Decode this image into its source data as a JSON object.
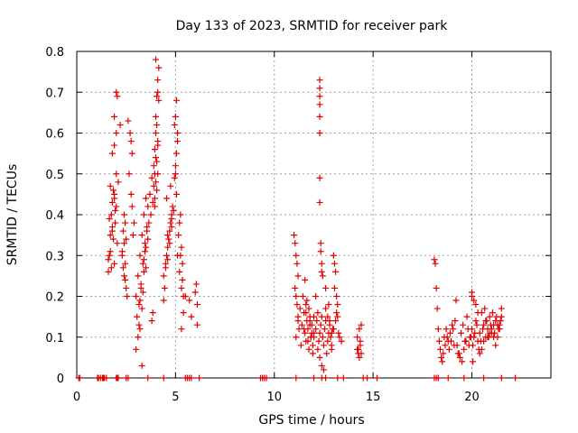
{
  "chart_data": {
    "type": "scatter",
    "title": "Day 133 of 2023, SRMTID for receiver park",
    "xlabel": "GPS time / hours",
    "ylabel": "SRMTID / TECUs",
    "xlim": [
      0,
      24
    ],
    "ylim": [
      0,
      0.8
    ],
    "xticks": [
      0,
      5,
      10,
      15,
      20
    ],
    "xtick_labels": [
      "0",
      "5",
      "10",
      "15",
      "20"
    ],
    "yticks": [
      0,
      0.1,
      0.2,
      0.3,
      0.4,
      0.5,
      0.6,
      0.7,
      0.8
    ],
    "ytick_labels": [
      "0",
      "0.1",
      "0.2",
      "0.3",
      "0.4",
      "0.5",
      "0.6",
      "0.7",
      "0.8"
    ],
    "grid": true,
    "marker": "+",
    "color": "#e00000",
    "series": [
      {
        "name": "SRMTID",
        "x": [
          0.1,
          0.15,
          1.05,
          1.1,
          1.2,
          1.3,
          1.35,
          1.4,
          1.5,
          2.0,
          2.05,
          2.1,
          2.5,
          2.6,
          3.6,
          4.4,
          5.5,
          5.6,
          5.7,
          5.8,
          6.2,
          9.3,
          9.4,
          9.5,
          9.6,
          11.1,
          12.0,
          12.4,
          12.6,
          13.2,
          13.5,
          14.5,
          14.7,
          15.2,
          18.1,
          18.2,
          18.3,
          18.8,
          19.6,
          20.6,
          21.5,
          22.2,
          1.6,
          1.65,
          1.7,
          1.75,
          1.8,
          1.85,
          1.9,
          1.95,
          2.0,
          2.05,
          1.6,
          1.7,
          1.8,
          1.9,
          1.65,
          1.75,
          1.85,
          1.95,
          1.7,
          1.8,
          1.9,
          2.0,
          1.8,
          1.9,
          2.0,
          2.05,
          1.9,
          2.0,
          2.1,
          2.2,
          2.3,
          2.4,
          2.35,
          2.45,
          2.4,
          2.5,
          2.55,
          2.5,
          2.4,
          2.45,
          2.35,
          2.3,
          2.45,
          2.6,
          2.7,
          2.75,
          2.8,
          2.65,
          2.75,
          2.8,
          2.9,
          2.85,
          3.0,
          3.1,
          3.2,
          3.3,
          3.4,
          3.5,
          3.05,
          3.15,
          3.25,
          3.35,
          3.45,
          3.55,
          3.1,
          3.2,
          3.3,
          3.4,
          3.5,
          3.6,
          3.0,
          3.2,
          3.4,
          3.6,
          3.15,
          3.35,
          3.55,
          3.25,
          3.45,
          3.3,
          3.5,
          3.7,
          3.8,
          3.75,
          3.85,
          3.65,
          3.9,
          3.95,
          3.8,
          3.85,
          3.9,
          3.95,
          4.0,
          4.05,
          4.1,
          4.0,
          4.05,
          4.1,
          4.15,
          3.95,
          4.0,
          4.1,
          4.05,
          4.0,
          4.1,
          3.95,
          4.0,
          4.05,
          4.1,
          4.15,
          4.4,
          4.5,
          4.6,
          4.7,
          4.8,
          4.45,
          4.55,
          4.65,
          4.75,
          4.85,
          4.5,
          4.6,
          4.7,
          4.8,
          4.9,
          4.4,
          4.6,
          4.8,
          4.55,
          4.75,
          4.95,
          5.0,
          5.05,
          5.1,
          4.95,
          5.0,
          5.05,
          5.1,
          5.0,
          5.05,
          5.1,
          5.15,
          5.2,
          5.25,
          5.3,
          5.35,
          5.2,
          5.3,
          5.25,
          5.35,
          5.4,
          5.3,
          5.4,
          5.5,
          5.7,
          5.8,
          6.0,
          6.1,
          6.1,
          6.05,
          11.0,
          11.05,
          11.1,
          11.15,
          11.2,
          11.05,
          11.1,
          11.15,
          11.2,
          11.25,
          11.1,
          11.2,
          11.3,
          11.35,
          11.4,
          11.5,
          11.55,
          11.6,
          11.65,
          11.7,
          11.75,
          11.8,
          11.85,
          11.9,
          11.95,
          12.0,
          11.45,
          11.55,
          11.65,
          11.75,
          11.85,
          11.95,
          11.5,
          11.6,
          11.7,
          11.8,
          11.9,
          12.0,
          11.6,
          11.8,
          12.0,
          12.1,
          12.15,
          12.2,
          12.25,
          12.3,
          12.1,
          12.2,
          12.3,
          12.35,
          12.4,
          12.45,
          12.5,
          12.55,
          12.6,
          12.65,
          12.7,
          12.75,
          12.8,
          12.85,
          12.9,
          12.95,
          12.4,
          12.5,
          12.6,
          12.7,
          12.8,
          12.9,
          12.45,
          12.6,
          12.75,
          12.9,
          12.3,
          12.3,
          12.3,
          12.3,
          12.3,
          12.3,
          12.3,
          12.3,
          12.35,
          12.35,
          12.4,
          12.4,
          13.0,
          13.05,
          13.1,
          13.15,
          13.2,
          13.0,
          13.1,
          13.2,
          13.3,
          13.4,
          13.05,
          13.15,
          13.25,
          14.2,
          14.25,
          14.3,
          14.35,
          14.4,
          14.2,
          14.3,
          14.4,
          14.25,
          14.35,
          18.1,
          18.15,
          18.2,
          18.25,
          18.3,
          18.35,
          18.4,
          18.45,
          18.5,
          18.6,
          18.7,
          18.8,
          18.9,
          19.0,
          19.1,
          18.55,
          18.65,
          18.75,
          18.85,
          18.95,
          19.05,
          19.15,
          19.2,
          19.3,
          19.4,
          19.5,
          19.6,
          19.7,
          19.8,
          19.9,
          19.25,
          19.35,
          19.45,
          19.55,
          19.65,
          19.75,
          19.85,
          19.95,
          20.0,
          20.1,
          20.2,
          20.3,
          20.4,
          20.5,
          20.6,
          20.7,
          20.8,
          20.9,
          21.0,
          21.1,
          21.2,
          21.3,
          21.4,
          21.5,
          20.05,
          20.15,
          20.25,
          20.35,
          20.45,
          20.55,
          20.65,
          20.75,
          20.85,
          20.95,
          21.05,
          21.15,
          21.25,
          21.35,
          21.45,
          20.0,
          20.2,
          20.4,
          20.6,
          20.8,
          21.0,
          21.2,
          21.4,
          20.1,
          20.3,
          20.5,
          20.7,
          20.9,
          21.1,
          21.3,
          21.5,
          20.0,
          20.05
        ],
        "y": [
          0,
          0,
          0,
          0,
          0,
          0,
          0,
          0,
          0,
          0,
          0,
          0,
          0,
          0,
          0,
          0,
          0,
          0,
          0,
          0,
          0,
          0,
          0,
          0,
          0,
          0,
          0,
          0,
          0,
          0,
          0,
          0,
          0,
          0,
          0,
          0,
          0,
          0,
          0,
          0,
          0,
          0,
          0.26,
          0.3,
          0.35,
          0.4,
          0.43,
          0.46,
          0.28,
          0.38,
          0.42,
          0.33,
          0.29,
          0.31,
          0.37,
          0.44,
          0.39,
          0.27,
          0.34,
          0.41,
          0.47,
          0.36,
          0.45,
          0.5,
          0.55,
          0.64,
          0.7,
          0.69,
          0.57,
          0.6,
          0.48,
          0.62,
          0.3,
          0.33,
          0.36,
          0.28,
          0.25,
          0.22,
          0.2,
          0.34,
          0.4,
          0.38,
          0.27,
          0.31,
          0.24,
          0.63,
          0.6,
          0.58,
          0.55,
          0.5,
          0.45,
          0.42,
          0.38,
          0.35,
          0.2,
          0.25,
          0.3,
          0.35,
          0.4,
          0.44,
          0.15,
          0.18,
          0.22,
          0.28,
          0.33,
          0.37,
          0.1,
          0.12,
          0.17,
          0.26,
          0.32,
          0.42,
          0.07,
          0.19,
          0.29,
          0.34,
          0.13,
          0.21,
          0.36,
          0.23,
          0.31,
          0.03,
          0.27,
          0.45,
          0.49,
          0.4,
          0.43,
          0.38,
          0.47,
          0.5,
          0.14,
          0.16,
          0.52,
          0.56,
          0.6,
          0.53,
          0.58,
          0.64,
          0.69,
          0.7,
          0.76,
          0.44,
          0.48,
          0.5,
          0.46,
          0.78,
          0.57,
          0.42,
          0.54,
          0.62,
          0.73,
          0.68,
          0.25,
          0.28,
          0.32,
          0.36,
          0.4,
          0.22,
          0.3,
          0.34,
          0.38,
          0.42,
          0.27,
          0.29,
          0.33,
          0.37,
          0.41,
          0.19,
          0.35,
          0.39,
          0.44,
          0.47,
          0.49,
          0.52,
          0.55,
          0.58,
          0.62,
          0.64,
          0.68,
          0.6,
          0.5,
          0.45,
          0.3,
          0.35,
          0.38,
          0.4,
          0.32,
          0.28,
          0.26,
          0.22,
          0.3,
          0.24,
          0.2,
          0.12,
          0.16,
          0.2,
          0.19,
          0.15,
          0.21,
          0.18,
          0.13,
          0.23,
          0.35,
          0.33,
          0.3,
          0.28,
          0.25,
          0.22,
          0.2,
          0.18,
          0.15,
          0.12,
          0.1,
          0.14,
          0.17,
          0.08,
          0.13,
          0.16,
          0.11,
          0.09,
          0.19,
          0.12,
          0.07,
          0.15,
          0.1,
          0.13,
          0.06,
          0.11,
          0.2,
          0.24,
          0.14,
          0.17,
          0.1,
          0.08,
          0.12,
          0.16,
          0.09,
          0.14,
          0.11,
          0.15,
          0.18,
          0.13,
          0.1,
          0.12,
          0.14,
          0.16,
          0.09,
          0.11,
          0.2,
          0.07,
          0.05,
          0.13,
          0.15,
          0.1,
          0.08,
          0.12,
          0.14,
          0.06,
          0.09,
          0.11,
          0.13,
          0.1,
          0.08,
          0.12,
          0.03,
          0.02,
          0.17,
          0.15,
          0.14,
          0.11,
          0.25,
          0.22,
          0.18,
          0.07,
          0.43,
          0.49,
          0.6,
          0.64,
          0.67,
          0.71,
          0.73,
          0.69,
          0.31,
          0.33,
          0.28,
          0.26,
          0.3,
          0.28,
          0.26,
          0.2,
          0.18,
          0.12,
          0.14,
          0.15,
          0.1,
          0.09,
          0.22,
          0.16,
          0.11,
          0.07,
          0.06,
          0.05,
          0.08,
          0.13,
          0.1,
          0.12,
          0.06,
          0.07,
          0.09,
          0.29,
          0.28,
          0.22,
          0.17,
          0.12,
          0.09,
          0.07,
          0.05,
          0.04,
          0.1,
          0.12,
          0.09,
          0.11,
          0.13,
          0.08,
          0.06,
          0.08,
          0.1,
          0.07,
          0.09,
          0.12,
          0.14,
          0.19,
          0.06,
          0.05,
          0.04,
          0.07,
          0.09,
          0.12,
          0.1,
          0.08,
          0.06,
          0.11,
          0.13,
          0.09,
          0.15,
          0.08,
          0.1,
          0.12,
          0.1,
          0.14,
          0.09,
          0.11,
          0.16,
          0.13,
          0.1,
          0.12,
          0.15,
          0.11,
          0.13,
          0.14,
          0.1,
          0.12,
          0.15,
          0.08,
          0.11,
          0.13,
          0.07,
          0.09,
          0.12,
          0.17,
          0.14,
          0.1,
          0.13,
          0.16,
          0.11,
          0.15,
          0.12,
          0.14,
          0.2,
          0.18,
          0.06,
          0.09,
          0.1,
          0.12,
          0.08,
          0.13,
          0.19,
          0.16,
          0.07,
          0.14,
          0.11,
          0.1,
          0.13,
          0.17,
          0.21,
          0.04
        ]
      }
    ]
  }
}
